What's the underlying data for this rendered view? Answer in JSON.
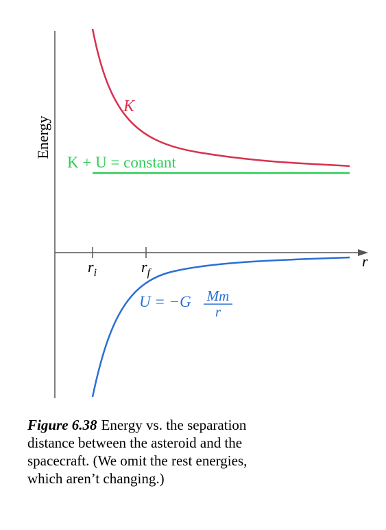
{
  "axes": {
    "y_label": "Energy",
    "x_label": "r",
    "ticks": [
      {
        "symbol": "r",
        "sub": "i"
      },
      {
        "symbol": "r",
        "sub": "f"
      }
    ]
  },
  "curves": {
    "kinetic_label": "K",
    "total_label": "K + U = constant",
    "potential_label": {
      "lhs": "U = −G",
      "numerator": "Mm",
      "denominator": "r"
    }
  },
  "caption": {
    "number": "Figure 6.38",
    "lines": [
      "Energy vs. the separation",
      "distance between the asteroid and the",
      "spacecraft. (We omit the rest energies,",
      "which aren’t changing.)"
    ]
  }
}
